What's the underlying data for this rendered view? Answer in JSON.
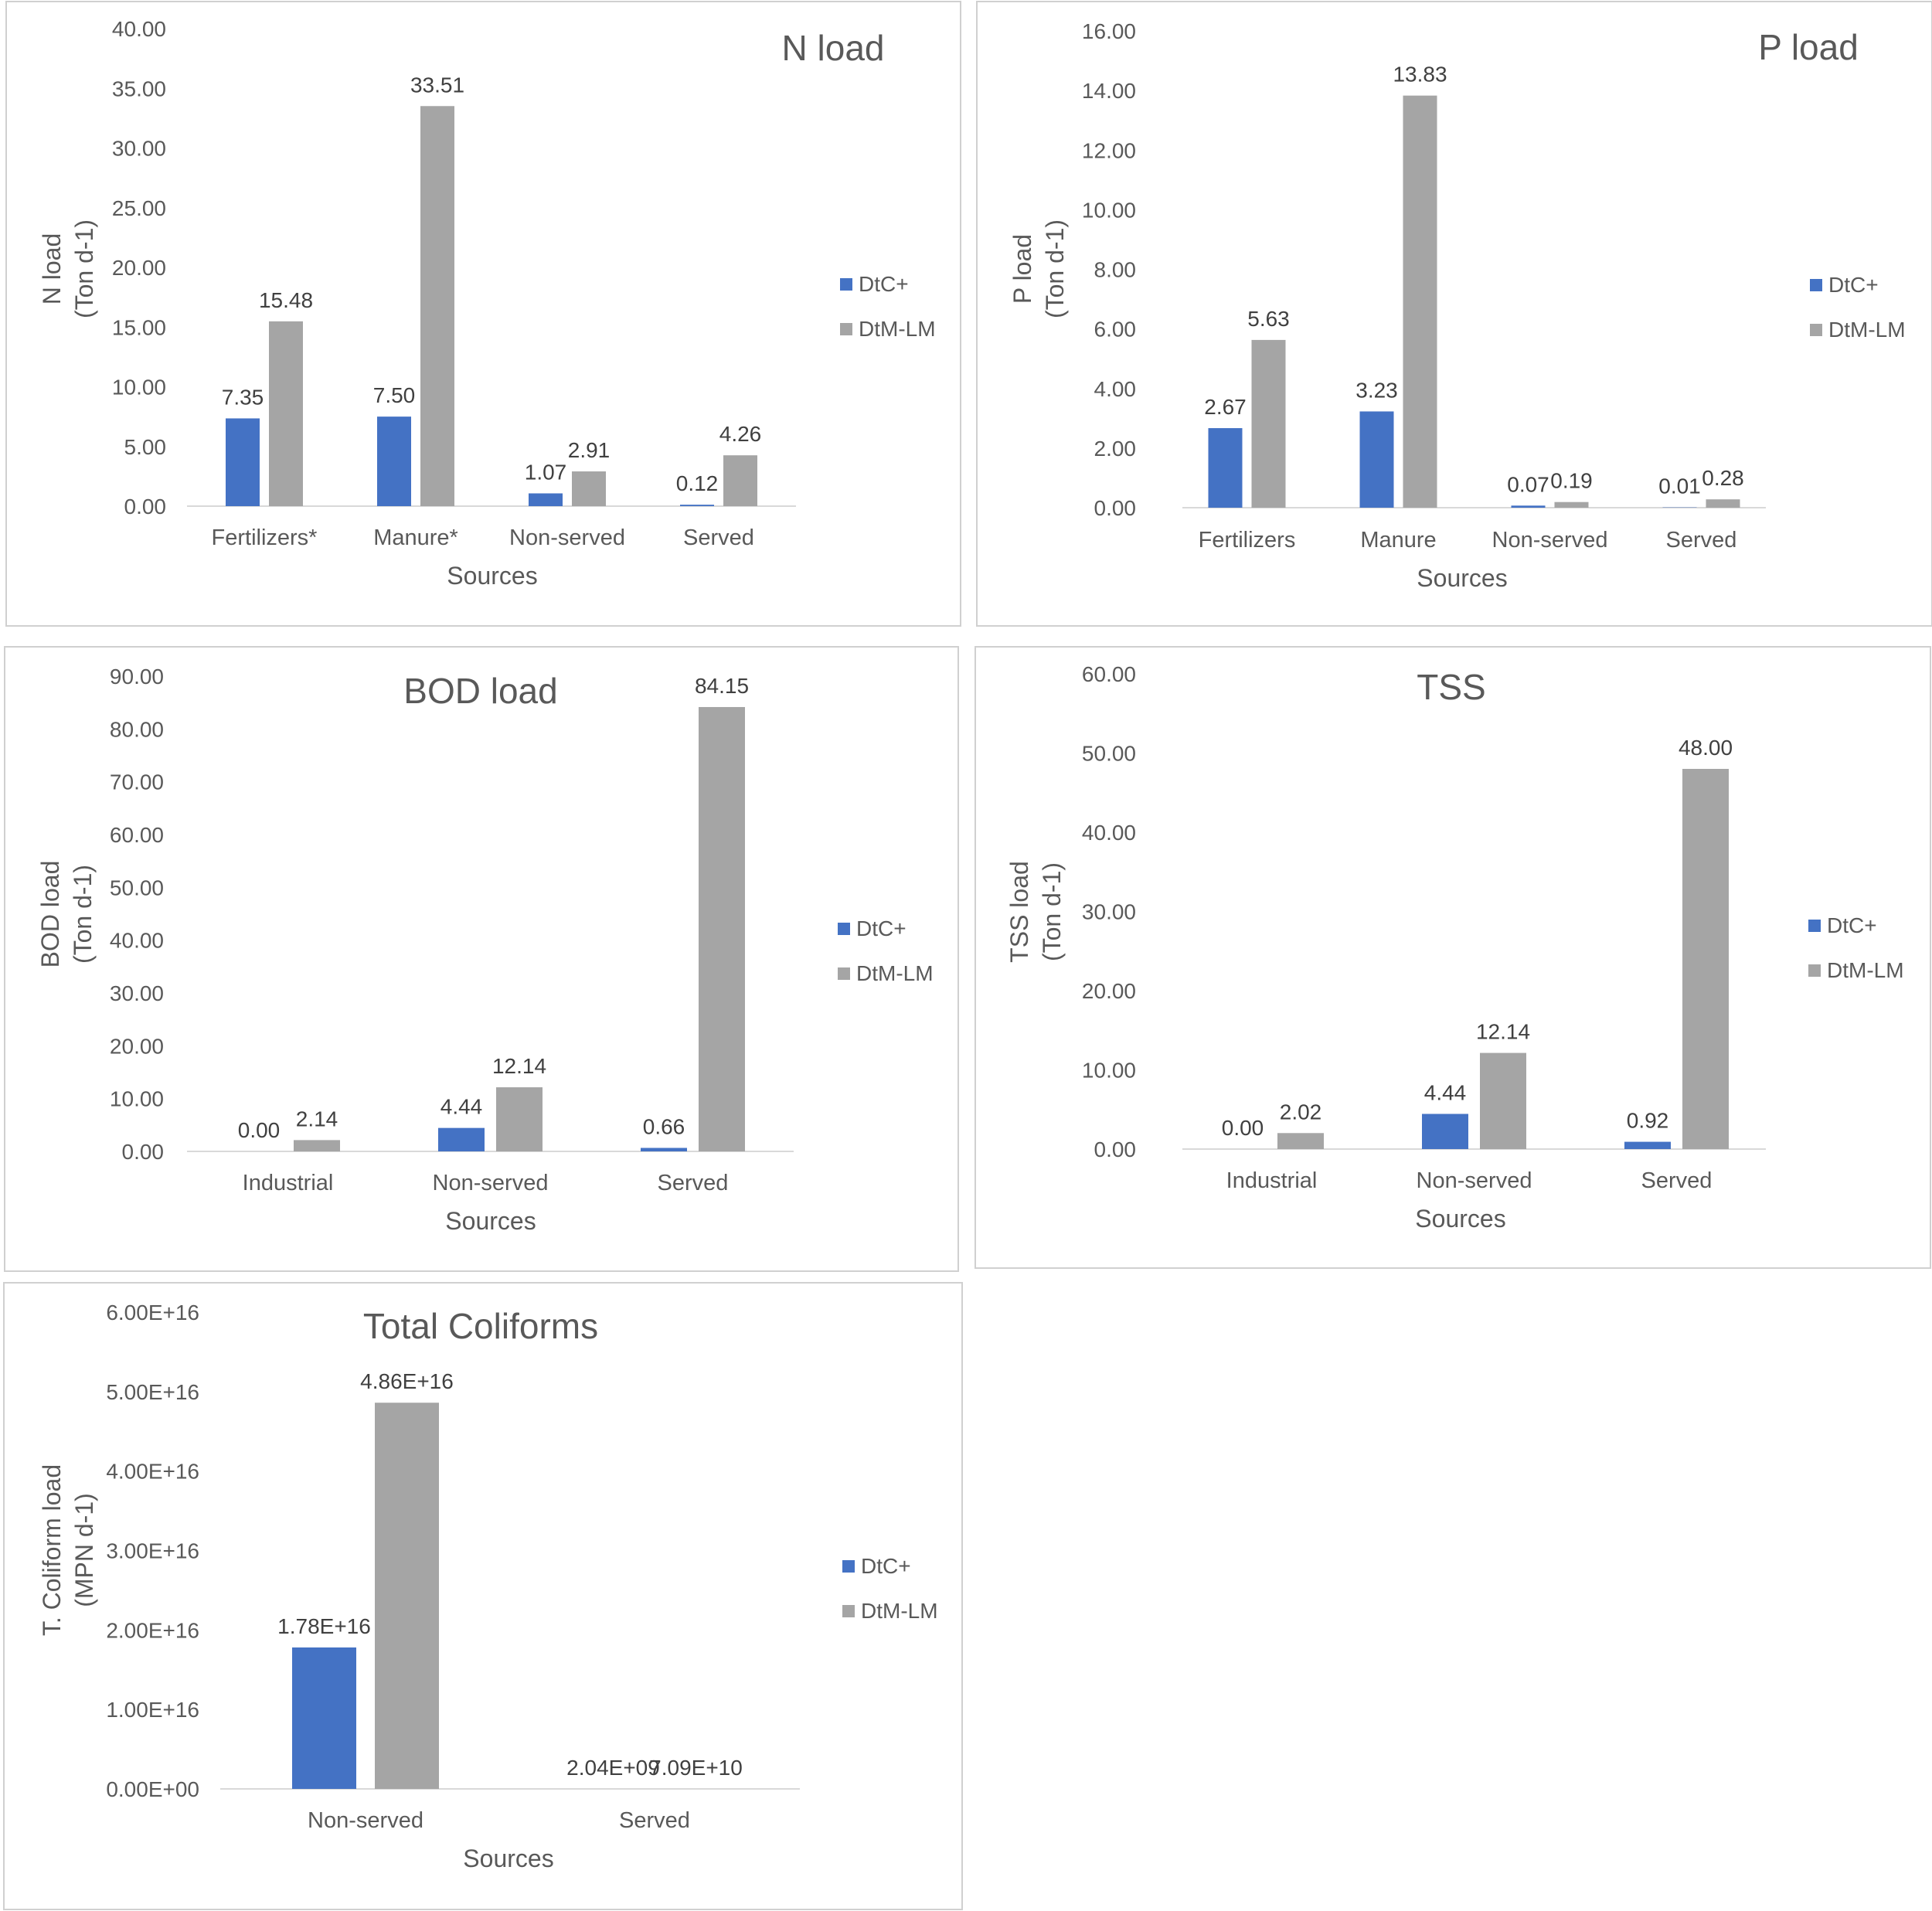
{
  "colors": {
    "dtc": "#4472C4",
    "dtm": "#A5A5A5"
  },
  "chart_data": [
    {
      "id": "n-load",
      "type": "bar",
      "title": "N load",
      "ylabel": [
        "N load",
        "(Ton d-1)"
      ],
      "xlabel": "Sources",
      "categories": [
        "Fertilizers*",
        "Manure*",
        "Non-served",
        "Served"
      ],
      "ylim": [
        0,
        40
      ],
      "ticks": [
        "0.00",
        "5.00",
        "10.00",
        "15.00",
        "20.00",
        "25.00",
        "30.00",
        "35.00",
        "40.00"
      ],
      "series": [
        {
          "name": "DtC+",
          "values": [
            7.35,
            7.5,
            1.07,
            0.12
          ],
          "labels": [
            "7.35",
            "7.50",
            "1.07",
            "0.12"
          ]
        },
        {
          "name": "DtM-LM",
          "values": [
            15.48,
            33.51,
            2.91,
            4.26
          ],
          "labels": [
            "15.48",
            "33.51",
            "2.91",
            "4.26"
          ]
        }
      ]
    },
    {
      "id": "p-load",
      "type": "bar",
      "title": "P load",
      "ylabel": [
        "P load",
        "(Ton d-1)"
      ],
      "xlabel": "Sources",
      "categories": [
        "Fertilizers",
        "Manure",
        "Non-served",
        "Served"
      ],
      "ylim": [
        0,
        16
      ],
      "ticks": [
        "0.00",
        "2.00",
        "4.00",
        "6.00",
        "8.00",
        "10.00",
        "12.00",
        "14.00",
        "16.00"
      ],
      "series": [
        {
          "name": "DtC+",
          "values": [
            2.67,
            3.23,
            0.07,
            0.01
          ],
          "labels": [
            "2.67",
            "3.23",
            "0.07",
            "0.01"
          ]
        },
        {
          "name": "DtM-LM",
          "values": [
            5.63,
            13.83,
            0.19,
            0.28
          ],
          "labels": [
            "5.63",
            "13.83",
            "0.19",
            "0.28"
          ]
        }
      ]
    },
    {
      "id": "bod-load",
      "type": "bar",
      "title": "BOD load",
      "ylabel": [
        "BOD load",
        "(Ton d-1)"
      ],
      "xlabel": "Sources",
      "categories": [
        "Industrial",
        "Non-served",
        "Served"
      ],
      "ylim": [
        0,
        90
      ],
      "ticks": [
        "0.00",
        "10.00",
        "20.00",
        "30.00",
        "40.00",
        "50.00",
        "60.00",
        "70.00",
        "80.00",
        "90.00"
      ],
      "series": [
        {
          "name": "DtC+",
          "values": [
            0.0,
            4.44,
            0.66
          ],
          "labels": [
            "0.00",
            "4.44",
            "0.66"
          ]
        },
        {
          "name": "DtM-LM",
          "values": [
            2.14,
            12.14,
            84.15
          ],
          "labels": [
            "2.14",
            "12.14",
            "84.15"
          ]
        }
      ]
    },
    {
      "id": "tss-load",
      "type": "bar",
      "title": "TSS",
      "ylabel": [
        "TSS load",
        "(Ton d-1)"
      ],
      "xlabel": "Sources",
      "categories": [
        "Industrial",
        "Non-served",
        "Served"
      ],
      "ylim": [
        0,
        60
      ],
      "ticks": [
        "0.00",
        "10.00",
        "20.00",
        "30.00",
        "40.00",
        "50.00",
        "60.00"
      ],
      "series": [
        {
          "name": "DtC+",
          "values": [
            0.0,
            4.44,
            0.92
          ],
          "labels": [
            "0.00",
            "4.44",
            "0.92"
          ]
        },
        {
          "name": "DtM-LM",
          "values": [
            2.02,
            12.14,
            48.0
          ],
          "labels": [
            "2.02",
            "12.14",
            "48.00"
          ]
        }
      ]
    },
    {
      "id": "coliform-load",
      "type": "bar",
      "title": "Total Coliforms",
      "ylabel": [
        "T. Coliform load",
        "(MPN d-1)"
      ],
      "xlabel": "Sources",
      "categories": [
        "Non-served",
        "Served"
      ],
      "ylim": [
        0,
        6e+16
      ],
      "ticks": [
        "0.00E+00",
        "1.00E+16",
        "2.00E+16",
        "3.00E+16",
        "4.00E+16",
        "5.00E+16",
        "6.00E+16"
      ],
      "series": [
        {
          "name": "DtC+",
          "values": [
            1.78e+16,
            2040000000.0
          ],
          "labels": [
            "1.78E+16",
            "2.04E+09"
          ]
        },
        {
          "name": "DtM-LM",
          "values": [
            4.86e+16,
            70900000000.0
          ],
          "labels": [
            "4.86E+16",
            "7.09E+10"
          ]
        }
      ]
    }
  ]
}
